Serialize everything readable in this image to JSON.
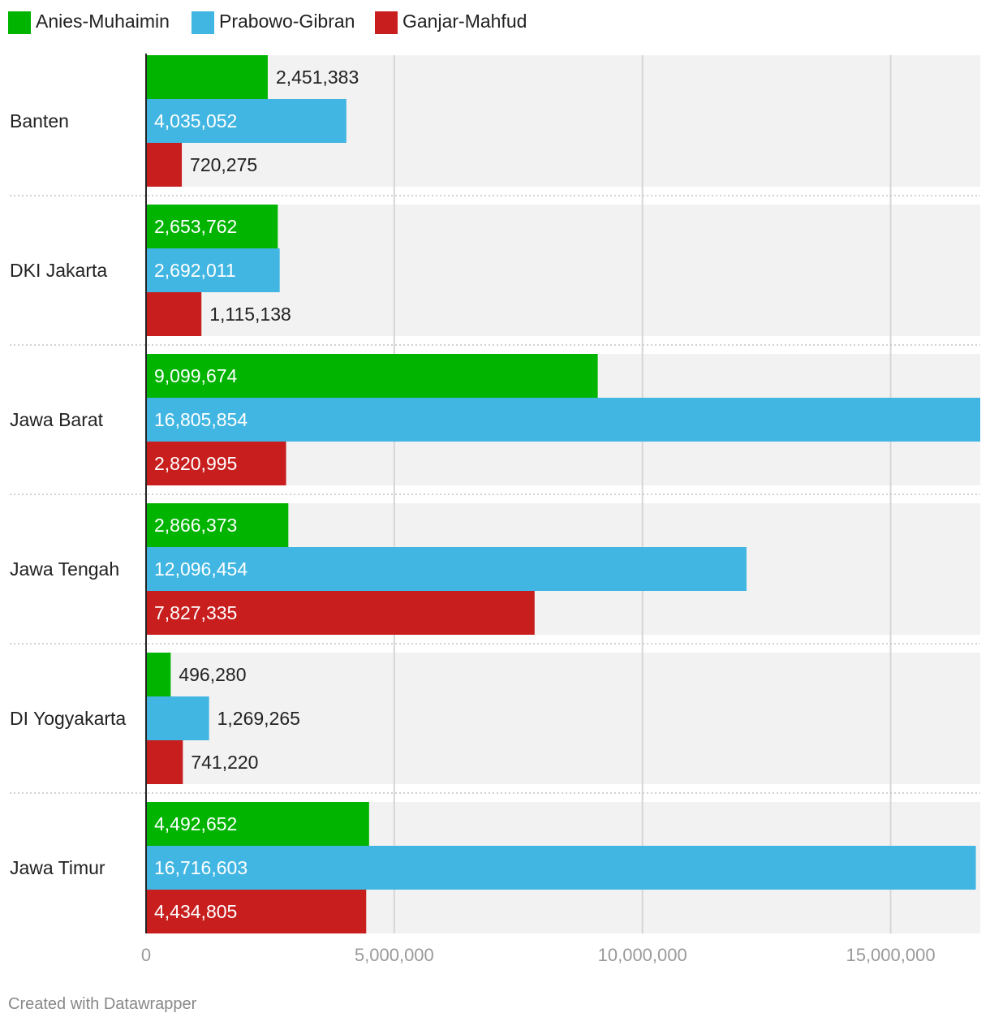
{
  "chart_data": {
    "type": "bar",
    "orientation": "horizontal",
    "categories": [
      "Banten",
      "DKI Jakarta",
      "Jawa Barat",
      "Jawa Tengah",
      "DI Yogyakarta",
      "Jawa Timur"
    ],
    "series": [
      {
        "name": "Anies-Muhaimin",
        "color": "#00b400",
        "values": [
          2451383,
          2653762,
          9099674,
          2866373,
          496280,
          4492652
        ],
        "labels": [
          "2,451,383",
          "2,653,762",
          "9,099,674",
          "2,866,373",
          "496,280",
          "4,492,652"
        ]
      },
      {
        "name": "Prabowo-Gibran",
        "color": "#41b6e2",
        "values": [
          4035052,
          2692011,
          16805854,
          12096454,
          1269265,
          16716603
        ],
        "labels": [
          "4,035,052",
          "2,692,011",
          "16,805,854",
          "12,096,454",
          "1,269,265",
          "16,716,603"
        ]
      },
      {
        "name": "Ganjar-Mahfud",
        "color": "#c81e1e",
        "values": [
          720275,
          1115138,
          2820995,
          7827335,
          741220,
          4434805
        ],
        "labels": [
          "720,275",
          "1,115,138",
          "2,820,995",
          "7,827,335",
          "741,220",
          "4,434,805"
        ]
      }
    ],
    "xlim": [
      0,
      16805854
    ],
    "xticks": [
      0,
      5000000,
      10000000,
      15000000
    ],
    "xtick_labels": [
      "0",
      "5,000,000",
      "10,000,000",
      "15,000,000"
    ],
    "grid": true,
    "legend": "top-left"
  },
  "credit": "Created with Datawrapper"
}
